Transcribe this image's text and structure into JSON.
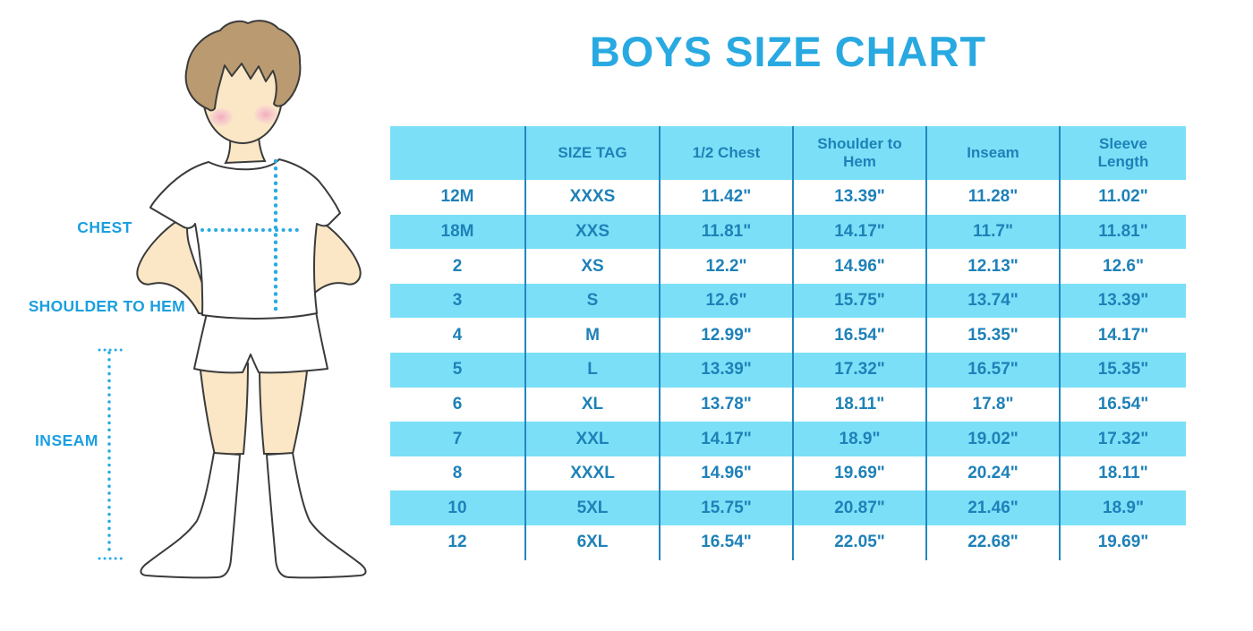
{
  "title": "BOYS SIZE CHART",
  "colors": {
    "title_blue": "#29A9E1",
    "table_text_blue": "#1E81B8",
    "row_stripe_cyan": "#7BE0F7",
    "column_divider_blue": "#2287BE",
    "measure_label_blue": "#1B9FE0",
    "dotted_line_cyan": "#29ABE2",
    "skin": "#FBE7C6",
    "hair_brown": "#BA9B71",
    "cheek_pink": "#F2A8BC"
  },
  "figure": {
    "labels": {
      "chest": "CHEST",
      "shoulder_to_hem": "SHOULDER TO HEM",
      "inseam": "INSEAM"
    }
  },
  "chart_data": {
    "type": "table",
    "title": "BOYS SIZE CHART",
    "columns": [
      "",
      "SIZE TAG",
      "1/2 Chest",
      "Shoulder to Hem",
      "Inseam",
      "Sleeve Length"
    ],
    "rows": [
      [
        "12M",
        "XXXS",
        "11.42\"",
        "13.39\"",
        "11.28\"",
        "11.02\""
      ],
      [
        "18M",
        "XXS",
        "11.81\"",
        "14.17\"",
        "11.7\"",
        "11.81\""
      ],
      [
        "2",
        "XS",
        "12.2\"",
        "14.96\"",
        "12.13\"",
        "12.6\""
      ],
      [
        "3",
        "S",
        "12.6\"",
        "15.75\"",
        "13.74\"",
        "13.39\""
      ],
      [
        "4",
        "M",
        "12.99\"",
        "16.54\"",
        "15.35\"",
        "14.17\""
      ],
      [
        "5",
        "L",
        "13.39\"",
        "17.32\"",
        "16.57\"",
        "15.35\""
      ],
      [
        "6",
        "XL",
        "13.78\"",
        "18.11\"",
        "17.8\"",
        "16.54\""
      ],
      [
        "7",
        "XXL",
        "14.17\"",
        "18.9\"",
        "19.02\"",
        "17.32\""
      ],
      [
        "8",
        "XXXL",
        "14.96\"",
        "19.69\"",
        "20.24\"",
        "18.11\""
      ],
      [
        "10",
        "5XL",
        "15.75\"",
        "20.87\"",
        "21.46\"",
        "18.9\""
      ],
      [
        "12",
        "6XL",
        "16.54\"",
        "22.05\"",
        "22.68\"",
        "19.69\""
      ]
    ],
    "layout": {
      "header_background": "#7BE0F7",
      "striped_data_rows": [
        1,
        3,
        5,
        7,
        9
      ],
      "units": "inches"
    }
  }
}
